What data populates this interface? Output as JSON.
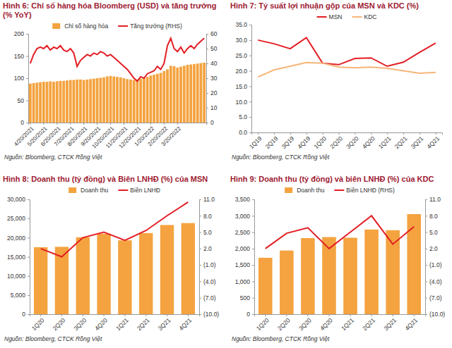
{
  "chart_data": [
    {
      "type": "bar",
      "title": "Hình 6: Chỉ số hàng hóa Bloomberg (USD) và tăng trưởng (% YoY)",
      "source": "Nguồn: Bloomberg, CTCK Rồng Việt",
      "categories": [
        "4/20/2021",
        null,
        null,
        null,
        "5/20/2021",
        null,
        null,
        null,
        "6/20/2021",
        null,
        null,
        null,
        "7/20/2021",
        null,
        null,
        null,
        "8/20/2021",
        null,
        null,
        null,
        "9/20/2021",
        null,
        null,
        null,
        "10/20/2021",
        null,
        null,
        null,
        "11/20/2021",
        null,
        null,
        null,
        "12/20/2021",
        null,
        null,
        null,
        "1/20/2022",
        null,
        null,
        null,
        "2/20/2022",
        null,
        null,
        null,
        "3/20/2022",
        null,
        null,
        null,
        null,
        null,
        null,
        null,
        null
      ],
      "series": [
        {
          "name": "Chỉ số hàng hóa",
          "type": "bar",
          "color": "#F4A340",
          "values": [
            88,
            89,
            90,
            91,
            92,
            92,
            93,
            92,
            93,
            94,
            94,
            95,
            96,
            96,
            97,
            97,
            96,
            97,
            98,
            99,
            100,
            101,
            102,
            104,
            105,
            104,
            103,
            102,
            100,
            98,
            97,
            96,
            97,
            99,
            101,
            103,
            106,
            108,
            110,
            112,
            116,
            120,
            128,
            127,
            124,
            126,
            128,
            130,
            131,
            132,
            133,
            134,
            135
          ]
        },
        {
          "name": "Tăng trưởng (RHS)",
          "type": "line",
          "axis": "y2",
          "color": "#E31E24",
          "values": [
            40,
            46,
            50,
            51,
            50,
            52,
            49,
            51,
            50,
            52,
            49,
            48,
            50,
            47,
            38,
            42,
            44,
            46,
            45,
            47,
            46,
            48,
            47,
            45,
            46,
            44,
            42,
            40,
            38,
            36,
            33,
            30,
            28,
            31,
            30,
            33,
            34,
            35,
            38,
            36,
            40,
            52,
            57,
            50,
            48,
            51,
            47,
            50,
            52,
            50,
            53,
            55,
            57
          ]
        }
      ],
      "ylim": [
        0,
        200
      ],
      "yticks": [
        0,
        50,
        100,
        150,
        200
      ],
      "y2lim": [
        0,
        60
      ],
      "y2ticks": [
        0,
        10,
        20,
        30,
        40,
        50,
        60
      ],
      "legend": "top",
      "grid": false
    },
    {
      "type": "line",
      "title": "Hình 7: Tỷ suất lợi nhuận gộp của MSN và KDC (%)",
      "source": "Nguồn: Bloomberg, CTCK Rồng Việt",
      "categories": [
        "1Q19",
        "2Q19",
        "3Q19",
        "4Q19",
        "1Q20",
        "2Q20",
        "3Q20",
        "4Q20",
        "1Q21",
        "2Q21",
        "3Q21",
        "4Q21"
      ],
      "series": [
        {
          "name": "MSN",
          "color": "#E31E24",
          "values": [
            30.0,
            28.8,
            27.2,
            30.8,
            22.5,
            22.0,
            24.0,
            24.2,
            21.5,
            22.8,
            26.0,
            29.0
          ]
        },
        {
          "name": "KDC",
          "color": "#F7B579",
          "values": [
            18.0,
            20.3,
            21.5,
            22.7,
            22.5,
            21.2,
            21.0,
            21.2,
            20.8,
            20.0,
            19.2,
            19.5
          ]
        }
      ],
      "ylim": [
        0,
        35
      ],
      "yticks": [
        {
          "value": 0,
          "label": "0.0"
        },
        {
          "value": 5,
          "label": "5.0"
        },
        {
          "value": 10,
          "label": "10.0"
        },
        {
          "value": 15,
          "label": "15.0"
        },
        {
          "value": 20,
          "label": "20.0"
        },
        {
          "value": 25,
          "label": "25.0"
        },
        {
          "value": 30,
          "label": "30.0"
        },
        {
          "value": 35,
          "label": "35.0"
        }
      ],
      "legend": "top",
      "grid": false
    },
    {
      "type": "bar",
      "title": "Hình 8: Doanh thu (tỷ đồng) và Biên LNHĐ (%) của MSN",
      "source": "Nguồn: Bloomberg, CTCK Rồng Việt",
      "categories": [
        "1Q20",
        "2Q20",
        "3Q20",
        "4Q20",
        "1Q21",
        "2Q21",
        "3Q21",
        "4Q21"
      ],
      "series": [
        {
          "name": "Doanh thu",
          "type": "bar",
          "color": "#F4A340",
          "values": [
            17500,
            17600,
            20100,
            21000,
            19300,
            21200,
            23300,
            23800
          ]
        },
        {
          "name": "Biên LNHĐ",
          "type": "line",
          "axis": "y2",
          "color": "#E31E24",
          "values": [
            2.0,
            0.5,
            4.0,
            5.0,
            3.5,
            5.3,
            8.0,
            10.5
          ]
        }
      ],
      "ylim": [
        0,
        30000
      ],
      "yticks": [
        0,
        {
          "value": 5000,
          "label": "5,000"
        },
        {
          "value": 10000,
          "label": "10,000"
        },
        {
          "value": 15000,
          "label": "15,000"
        },
        {
          "value": 20000,
          "label": "20,000"
        },
        {
          "value": 25000,
          "label": "25,000"
        },
        {
          "value": 30000,
          "label": "30,000"
        }
      ],
      "y2lim": [
        -10,
        11
      ],
      "y2ticks": [
        {
          "value": -10,
          "label": "(10.0)"
        },
        {
          "value": -7,
          "label": "(7.0)"
        },
        {
          "value": -4,
          "label": "(4.0)"
        },
        {
          "value": -1,
          "label": "(1.0)"
        },
        {
          "value": 2,
          "label": "2.0"
        },
        {
          "value": 5,
          "label": "5.0"
        },
        {
          "value": 8,
          "label": "8.0"
        },
        {
          "value": 11,
          "label": "11.0"
        }
      ],
      "legend": "top",
      "grid": false
    },
    {
      "type": "bar",
      "title": "Hình 9: Doanh thu (tỷ đồng) và biên LNHĐ (%) của KDC",
      "source": "Nguồn: Bloomberg, CTCK Rồng Việt",
      "categories": [
        "1Q20",
        "2Q20",
        "3Q20",
        "4Q20",
        "1Q21",
        "2Q21",
        "3Q21",
        "4Q21"
      ],
      "series": [
        {
          "name": "Doanh thu",
          "type": "bar",
          "color": "#F4A340",
          "values": [
            1720,
            1940,
            2320,
            2350,
            2330,
            2580,
            2560,
            3050
          ]
        },
        {
          "name": "Biên LNHĐ (RHS)",
          "type": "line",
          "axis": "y2",
          "color": "#E31E24",
          "values": [
            2.0,
            4.8,
            5.8,
            2.0,
            5.0,
            8.0,
            2.8,
            6.0
          ]
        }
      ],
      "ylim": [
        0,
        3500
      ],
      "yticks": [
        0,
        500,
        {
          "value": 1000,
          "label": "1,000"
        },
        {
          "value": 1500,
          "label": "1,500"
        },
        {
          "value": 2000,
          "label": "2,000"
        },
        {
          "value": 2500,
          "label": "2,500"
        },
        {
          "value": 3000,
          "label": "3,000"
        },
        {
          "value": 3500,
          "label": "3,500"
        }
      ],
      "y2lim": [
        -10,
        11
      ],
      "y2ticks": [
        {
          "value": -10,
          "label": "(10.0)"
        },
        {
          "value": -7,
          "label": "(7.0)"
        },
        {
          "value": -4,
          "label": "(4.0)"
        },
        {
          "value": -1,
          "label": "(1.0)"
        },
        {
          "value": 2,
          "label": "2.0"
        },
        {
          "value": 5,
          "label": "5.0"
        },
        {
          "value": 8,
          "label": "8.0"
        },
        {
          "value": 11,
          "label": "11.0"
        }
      ],
      "legend": "top",
      "grid": false
    }
  ]
}
